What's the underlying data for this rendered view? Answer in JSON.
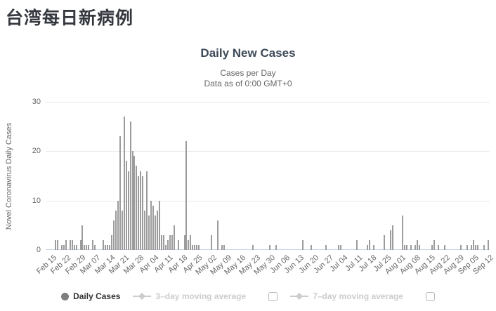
{
  "page": {
    "title": "台湾每日新病例"
  },
  "chart": {
    "title": "Daily New Cases",
    "subtitle_line1": "Cases per Day",
    "subtitle_line2": "Data as of 0:00 GMT+0",
    "y_axis_title": "Novel Coronavirus Daily Cases"
  },
  "legend": {
    "daily_cases_label": "Daily Cases",
    "ma3_label": "3–day moving average",
    "ma7_label": "7–day moving average"
  },
  "colors": {
    "bar": "#9c9c9c",
    "gridline": "#e7e7e7",
    "axis_line": "#ccd6eb",
    "text_muted": "#666666",
    "disabled_legend": "#cccccc",
    "chart_title": "#3e4a59",
    "page_title": "#35383f",
    "legend_text": "#333333",
    "legend_dot": "#7f7f7f"
  },
  "chart_data": {
    "type": "bar",
    "title": "Daily New Cases",
    "subtitle": "Cases per Day — Data as of 0:00 GMT+0",
    "ylabel": "Novel Coronavirus Daily Cases",
    "xlabel": "",
    "ylim": [
      0,
      30
    ],
    "y_ticks": [
      0,
      10,
      20,
      30
    ],
    "grid": true,
    "legend_position": "bottom",
    "x_start_date": "Feb 15",
    "x_end_date": "Sep 12",
    "x_tick_interval_days": 7,
    "x_tick_labels": [
      "Feb 15",
      "Feb 22",
      "Feb 29",
      "Mar 07",
      "Mar 14",
      "Mar 21",
      "Mar 28",
      "Apr 04",
      "Apr 11",
      "Apr 18",
      "Apr 25",
      "May 02",
      "May 09",
      "May 16",
      "May 23",
      "May 30",
      "Jun 06",
      "Jun 13",
      "Jun 20",
      "Jun 27",
      "Jul 04",
      "Jul 11",
      "Jul 18",
      "Jul 25",
      "Aug 01",
      "Aug 08",
      "Aug 15",
      "Aug 22",
      "Aug 29",
      "Sep 05",
      "Sep 12"
    ],
    "series": [
      {
        "name": "Daily Cases",
        "values": [
          0,
          2,
          2,
          0,
          1,
          1,
          2,
          0,
          2,
          2,
          1,
          1,
          0,
          2,
          5,
          1,
          1,
          1,
          0,
          2,
          1,
          0,
          0,
          0,
          2,
          1,
          1,
          1,
          3,
          6,
          8,
          10,
          23,
          8,
          27,
          18,
          16,
          26,
          20,
          19,
          17,
          15,
          16,
          15,
          8,
          16,
          7,
          10,
          9,
          7,
          8,
          10,
          3,
          3,
          1,
          2,
          3,
          3,
          5,
          0,
          2,
          0,
          0,
          3,
          22,
          2,
          3,
          1,
          1,
          1,
          1,
          0,
          0,
          0,
          0,
          0,
          3,
          0,
          0,
          6,
          0,
          1,
          1,
          0,
          0,
          0,
          0,
          0,
          0,
          0,
          0,
          0,
          0,
          0,
          0,
          0,
          1,
          0,
          0,
          0,
          0,
          0,
          0,
          0,
          1,
          0,
          0,
          1,
          0,
          0,
          0,
          0,
          0,
          0,
          0,
          0,
          0,
          0,
          0,
          0,
          2,
          0,
          0,
          0,
          1,
          0,
          0,
          0,
          0,
          0,
          0,
          1,
          0,
          0,
          0,
          0,
          0,
          1,
          1,
          0,
          0,
          0,
          0,
          0,
          0,
          0,
          2,
          0,
          0,
          0,
          0,
          1,
          2,
          0,
          1,
          0,
          0,
          0,
          0,
          3,
          0,
          0,
          4,
          5,
          0,
          0,
          0,
          0,
          7,
          1,
          1,
          0,
          1,
          0,
          1,
          2,
          1,
          0,
          0,
          0,
          0,
          0,
          1,
          2,
          0,
          1,
          0,
          0,
          1,
          0,
          0,
          0,
          0,
          0,
          0,
          0,
          1,
          0,
          0,
          1,
          0,
          1,
          2,
          1,
          1,
          0,
          0,
          1,
          0,
          2,
          0
        ]
      },
      {
        "name": "3–day moving average",
        "visible": false
      },
      {
        "name": "7–day moving average",
        "visible": false
      }
    ]
  }
}
